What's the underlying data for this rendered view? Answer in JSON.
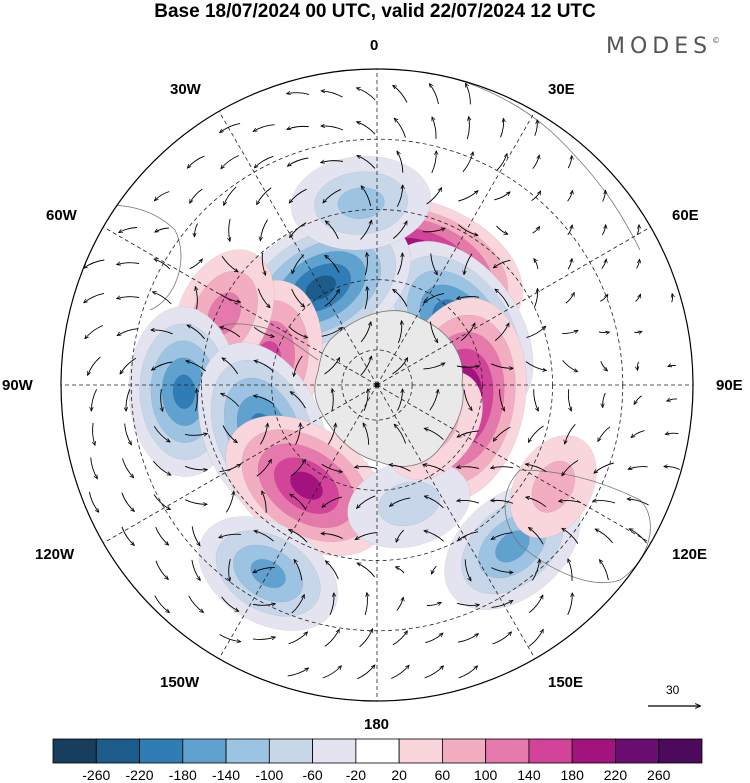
{
  "title": "Base 18/07/2024 00 UTC, valid 22/07/2024 12 UTC",
  "brand": "MODES",
  "brand_mark": "©",
  "longitude_labels": {
    "top": "0",
    "top_left": "30W",
    "top_right": "30E",
    "upper_left": "60W",
    "upper_right": "60E",
    "left": "90W",
    "right": "90E",
    "lower_left": "120W",
    "lower_right": "120E",
    "bottom_left": "150W",
    "bottom_right": "150E",
    "bottom": "180"
  },
  "reference_vector": {
    "label": "30"
  },
  "colorbar": {
    "ticks": [
      "-260",
      "-220",
      "-180",
      "-140",
      "-100",
      "-60",
      "-20",
      "20",
      "60",
      "100",
      "140",
      "180",
      "220",
      "260"
    ],
    "colors": [
      "#173e5c",
      "#1b5c8a",
      "#2f7db4",
      "#5fa2cf",
      "#9cc3e1",
      "#c8d6ea",
      "#e4e3f0",
      "#ffffff",
      "#f8d6dc",
      "#f2adc0",
      "#e679ac",
      "#d2449a",
      "#a2137d",
      "#6b0d72",
      "#4b0a5c"
    ]
  },
  "anomaly_centers": [
    {
      "lon": 20,
      "lat": -55,
      "value": 270
    },
    {
      "lon": 55,
      "lat": -62,
      "value": -230
    },
    {
      "lon": 100,
      "lat": -66,
      "value": 250
    },
    {
      "lon": -30,
      "lat": -58,
      "value": -230
    },
    {
      "lon": -78,
      "lat": -58,
      "value": 170
    },
    {
      "lon": -65,
      "lat": -42,
      "value": 110
    },
    {
      "lon": -92,
      "lat": -35,
      "value": -180
    },
    {
      "lon": -112,
      "lat": -55,
      "value": -210
    },
    {
      "lon": -145,
      "lat": -55,
      "value": 200
    },
    {
      "lon": -150,
      "lat": -28,
      "value": -140
    },
    {
      "lon": 165,
      "lat": -55,
      "value": -90
    },
    {
      "lon": 140,
      "lat": -30,
      "value": -150
    },
    {
      "lon": 120,
      "lat": -32,
      "value": 60
    },
    {
      "lon": 125,
      "lat": -70,
      "value": 80
    },
    {
      "lon": -5,
      "lat": -38,
      "value": -120
    }
  ]
}
